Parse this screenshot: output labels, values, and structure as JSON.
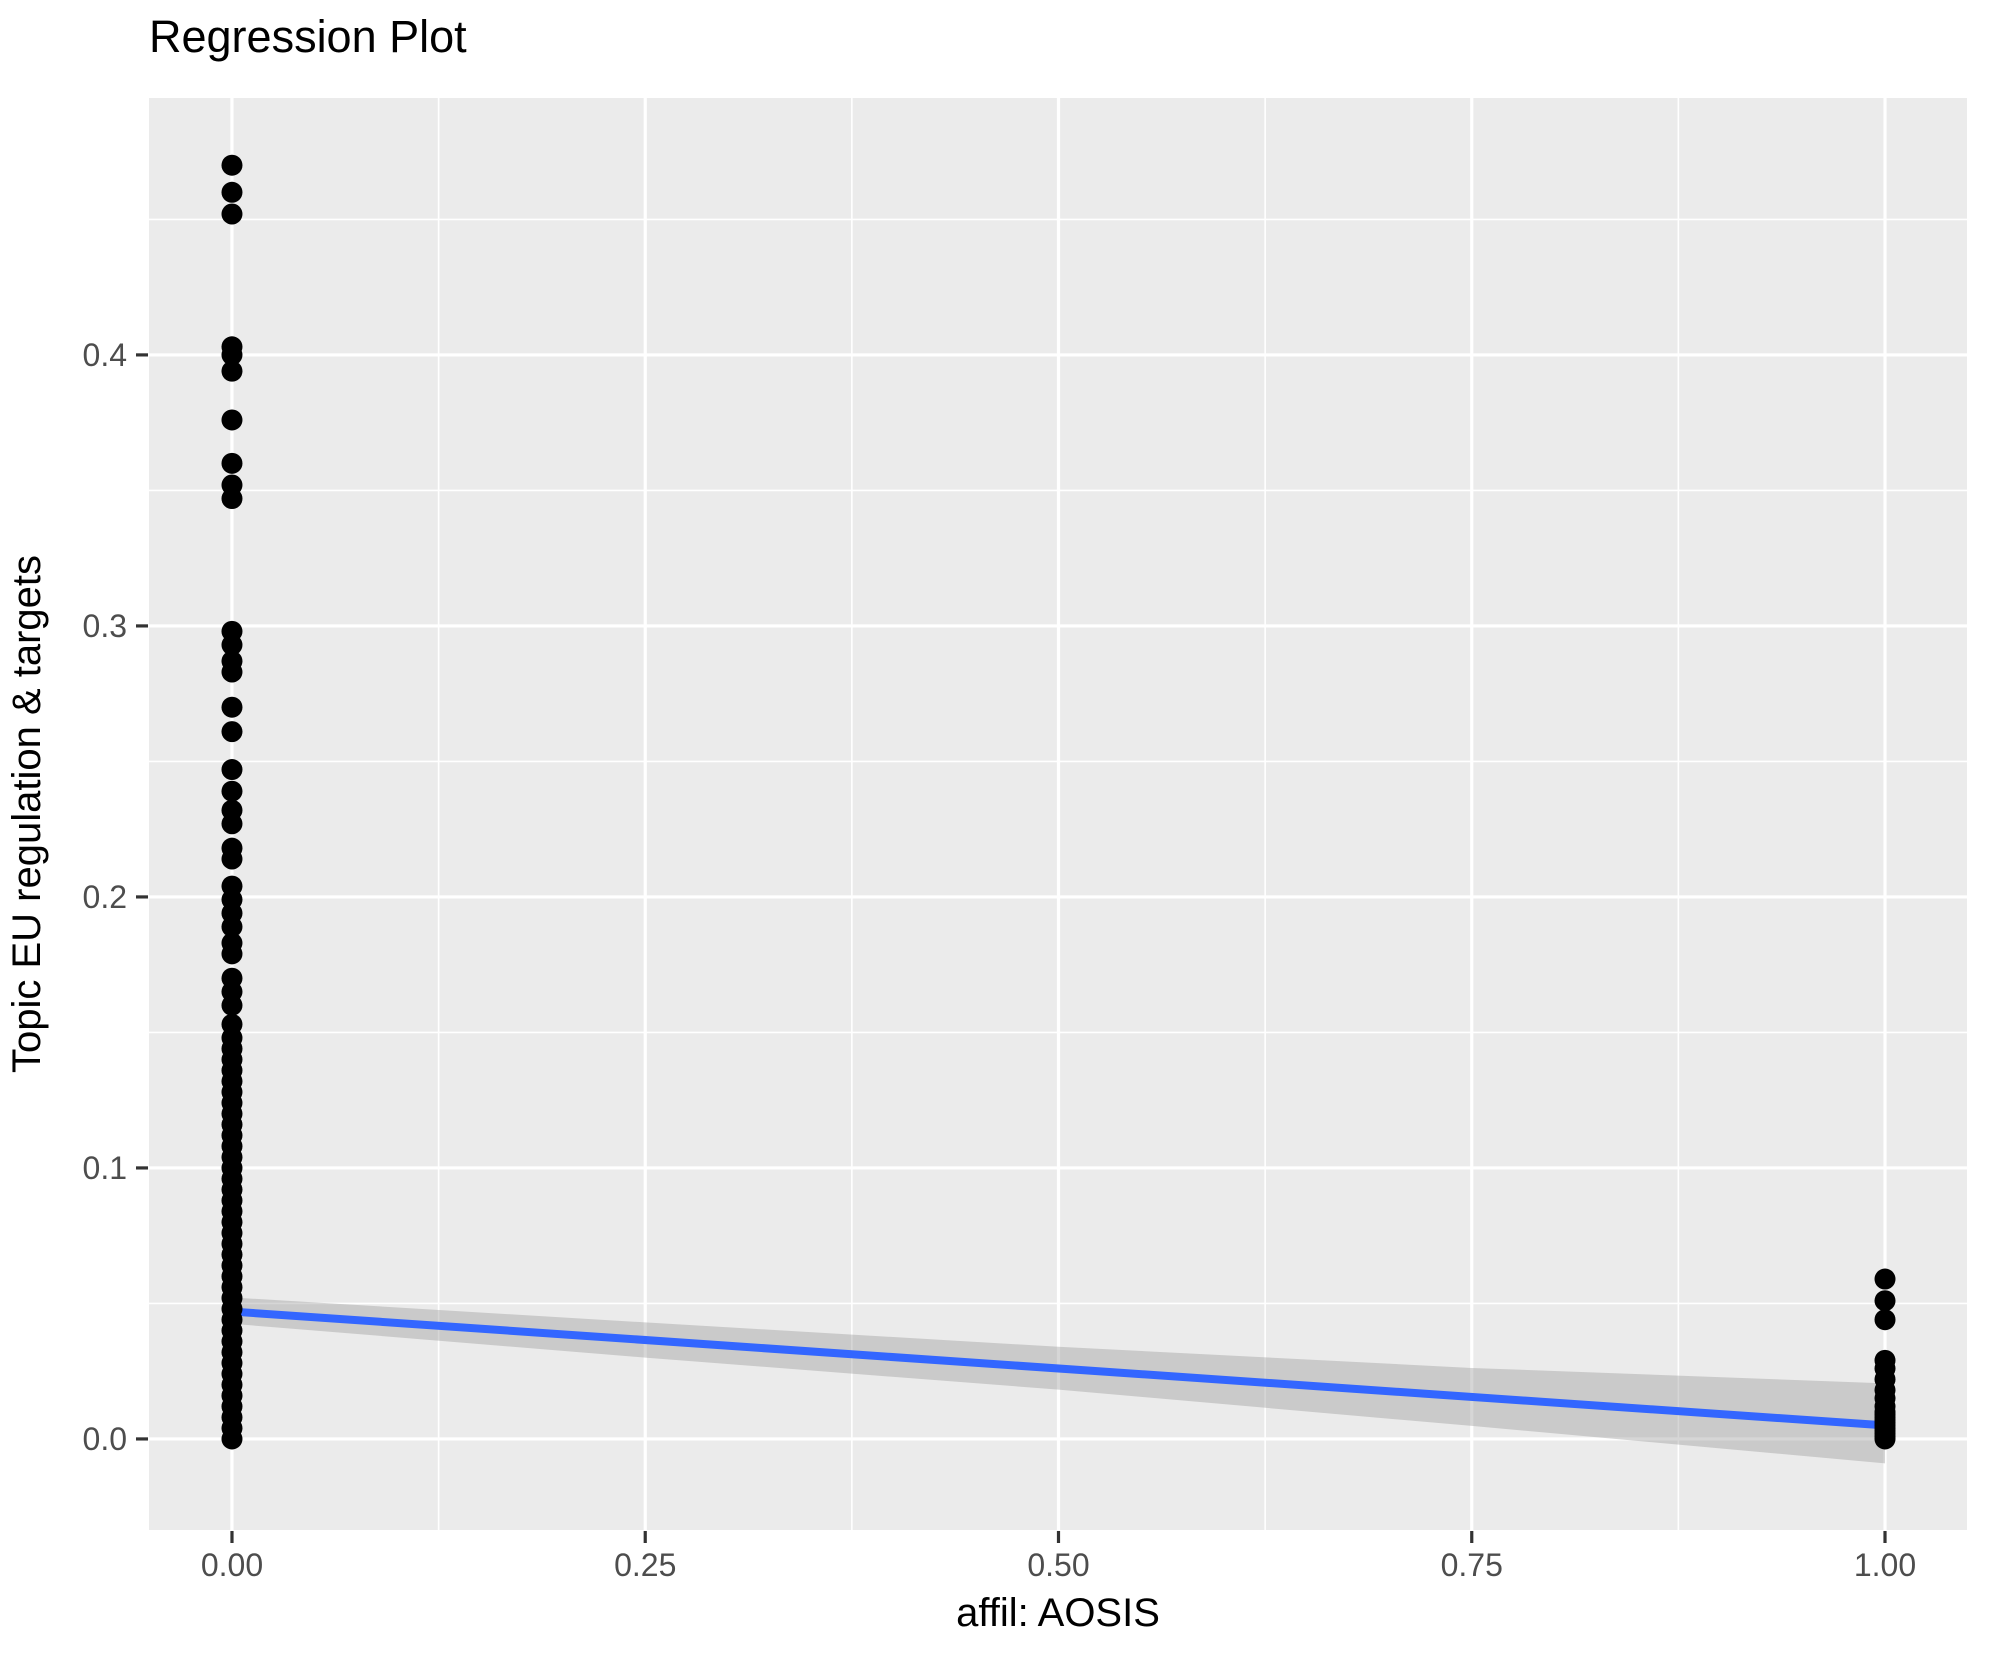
{
  "chart_data": {
    "type": "scatter",
    "title": "Regression Plot",
    "xlabel": "affil: AOSIS",
    "ylabel": "Topic EU regulation & targets",
    "grid": true,
    "legend": "none",
    "theme": "ggplot-gray",
    "colors": {
      "panel_background": "#EBEBEB",
      "grid_line": "#FFFFFF",
      "point": "#000000",
      "regression_line": "#3366FF",
      "confidence_band": "#999999",
      "tick_mark": "#333333",
      "tick_label": "#4D4D4D",
      "title_text": "#000000"
    },
    "xlim": [
      -0.0502,
      1.0496
    ],
    "ylim": [
      -0.0336,
      0.4948
    ],
    "x_ticks": [
      0.0,
      0.25,
      0.5,
      0.75,
      1.0
    ],
    "x_tick_labels": [
      "0.00",
      "0.25",
      "0.50",
      "0.75",
      "1.00"
    ],
    "x_minor_ticks": [
      0.125,
      0.375,
      0.625,
      0.875
    ],
    "y_ticks": [
      0.0,
      0.1,
      0.2,
      0.3,
      0.4
    ],
    "y_tick_labels": [
      "0.0",
      "0.1",
      "0.2",
      "0.3",
      "0.4"
    ],
    "y_minor_ticks": [
      0.05,
      0.15,
      0.25,
      0.35,
      0.45
    ],
    "series": [
      {
        "name": "affil AOSIS = 0",
        "x": 0,
        "y": [
          0.47,
          0.46,
          0.452,
          0.403,
          0.4,
          0.394,
          0.376,
          0.36,
          0.352,
          0.347,
          0.298,
          0.293,
          0.287,
          0.283,
          0.27,
          0.261,
          0.247,
          0.239,
          0.232,
          0.227,
          0.218,
          0.214,
          0.204,
          0.199,
          0.194,
          0.189,
          0.183,
          0.179,
          0.17,
          0.165,
          0.16,
          0.153,
          0.148,
          0.144,
          0.14,
          0.136,
          0.132,
          0.128,
          0.124,
          0.12,
          0.116,
          0.112,
          0.108,
          0.104,
          0.1,
          0.096,
          0.092,
          0.088,
          0.084,
          0.08,
          0.076,
          0.072,
          0.068,
          0.064,
          0.06,
          0.056,
          0.052,
          0.048,
          0.044,
          0.04,
          0.036,
          0.032,
          0.028,
          0.024,
          0.02,
          0.016,
          0.012,
          0.008,
          0.004,
          0.0
        ]
      },
      {
        "name": "affil AOSIS = 1",
        "x": 1,
        "y": [
          0.059,
          0.051,
          0.044,
          0.029,
          0.026,
          0.022,
          0.018,
          0.015,
          0.012,
          0.01,
          0.009,
          0.008,
          0.007,
          0.006,
          0.005,
          0.004,
          0.003,
          0.002,
          0.001,
          0.0
        ]
      }
    ],
    "regression_line": {
      "x": [
        0,
        1
      ],
      "y": [
        0.047,
        0.005
      ]
    },
    "confidence_band": {
      "x": [
        0,
        0.25,
        0.5,
        0.75,
        1
      ],
      "upper": [
        0.0522,
        0.043,
        0.034,
        0.0262,
        0.0205
      ],
      "lower": [
        0.0425,
        0.03,
        0.0182,
        0.0048,
        -0.009
      ]
    }
  }
}
